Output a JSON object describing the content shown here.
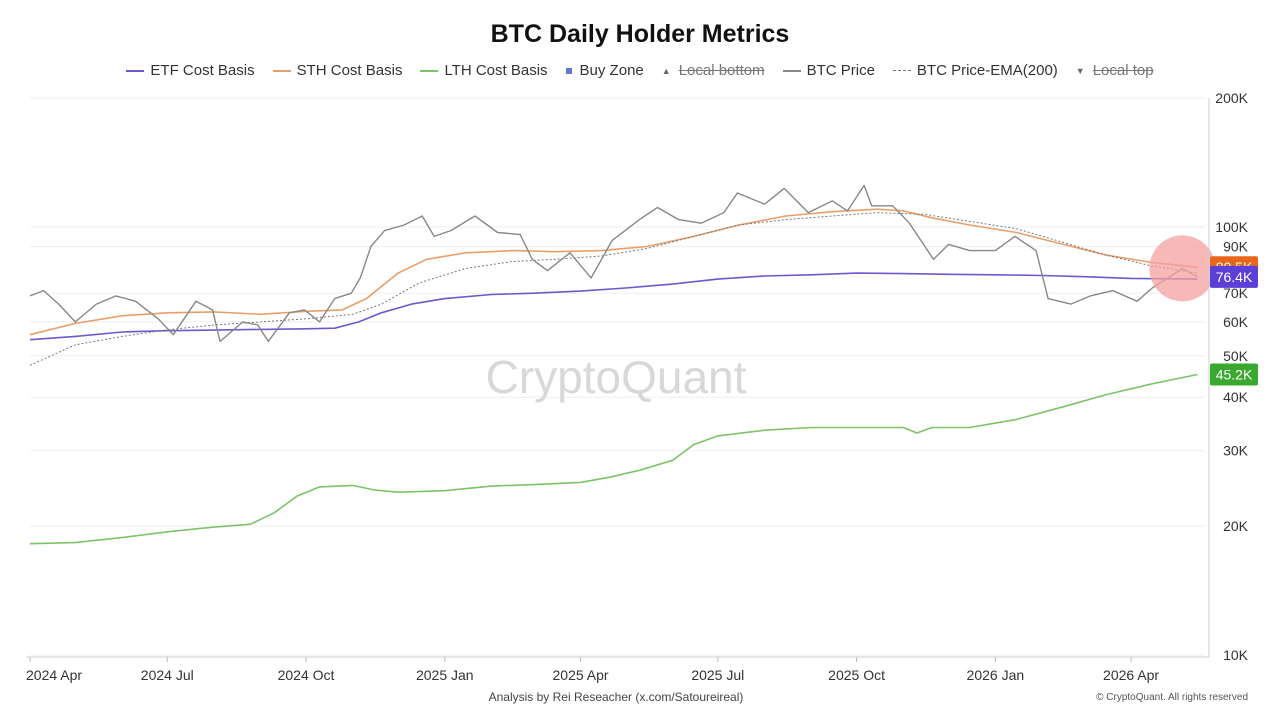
{
  "chart_data": {
    "type": "line",
    "title": "BTC Daily Holder Metrics",
    "y_scale": "log",
    "ylim": [
      10000,
      200000
    ],
    "y_ticks": [
      {
        "value": 200000,
        "label": "200K"
      },
      {
        "value": 100000,
        "label": "100K"
      },
      {
        "value": 90000,
        "label": "90K"
      },
      {
        "value": 70000,
        "label": "70K"
      },
      {
        "value": 60000,
        "label": "60K"
      },
      {
        "value": 50000,
        "label": "50K"
      },
      {
        "value": 40000,
        "label": "40K"
      },
      {
        "value": 30000,
        "label": "30K"
      },
      {
        "value": 20000,
        "label": "20K"
      },
      {
        "value": 10000,
        "label": "10K"
      }
    ],
    "x_range": [
      "2024-04-01",
      "2026-05-20"
    ],
    "x_ticks": [
      {
        "date": "2024-04-01",
        "label": "2024 Apr"
      },
      {
        "date": "2024-07-01",
        "label": "2024 Jul"
      },
      {
        "date": "2024-10-01",
        "label": "2024 Oct"
      },
      {
        "date": "2025-01-01",
        "label": "2025 Jan"
      },
      {
        "date": "2025-04-01",
        "label": "2025 Apr"
      },
      {
        "date": "2025-07-01",
        "label": "2025 Jul"
      },
      {
        "date": "2025-10-01",
        "label": "2025 Oct"
      },
      {
        "date": "2026-01-01",
        "label": "2026 Jan"
      },
      {
        "date": "2026-04-01",
        "label": "2026 Apr"
      }
    ],
    "grid": true,
    "legend": "top-center",
    "legend_items": [
      {
        "name": "ETF Cost Basis",
        "kind": "line",
        "color": "#6a5acd",
        "enabled": true
      },
      {
        "name": "STH Cost Basis",
        "kind": "line",
        "color": "#e8a06a",
        "enabled": true
      },
      {
        "name": "LTH Cost Basis",
        "kind": "line",
        "color": "#7cc36a",
        "enabled": true
      },
      {
        "name": "Buy Zone",
        "kind": "square",
        "color": "#5b7bd5",
        "enabled": true
      },
      {
        "name": "Local bottom",
        "kind": "triangle-up",
        "color": "#666666",
        "enabled": false
      },
      {
        "name": "BTC Price",
        "kind": "line",
        "color": "#888888",
        "enabled": true
      },
      {
        "name": "BTC Price-EMA(200)",
        "kind": "dashed",
        "color": "#777777",
        "enabled": true
      },
      {
        "name": "Local top",
        "kind": "triangle-down",
        "color": "#666666",
        "enabled": false
      }
    ],
    "series": [
      {
        "name": "ETF Cost Basis",
        "color": "#6a5acd",
        "width": 1.6,
        "points": [
          [
            "2024-04-01",
            54500
          ],
          [
            "2024-05-01",
            55500
          ],
          [
            "2024-06-01",
            56800
          ],
          [
            "2024-07-01",
            57200
          ],
          [
            "2024-08-01",
            57400
          ],
          [
            "2024-09-01",
            57600
          ],
          [
            "2024-10-01",
            57800
          ],
          [
            "2024-10-20",
            58000
          ],
          [
            "2024-11-05",
            60000
          ],
          [
            "2024-11-20",
            63000
          ],
          [
            "2024-12-10",
            66000
          ],
          [
            "2025-01-01",
            68000
          ],
          [
            "2025-02-01",
            69500
          ],
          [
            "2025-03-01",
            70000
          ],
          [
            "2025-04-01",
            70800
          ],
          [
            "2025-05-01",
            72000
          ],
          [
            "2025-06-01",
            73500
          ],
          [
            "2025-07-01",
            75500
          ],
          [
            "2025-08-01",
            76800
          ],
          [
            "2025-09-01",
            77300
          ],
          [
            "2025-10-01",
            78000
          ],
          [
            "2025-11-01",
            77800
          ],
          [
            "2025-12-01",
            77500
          ],
          [
            "2026-01-01",
            77300
          ],
          [
            "2026-02-01",
            77000
          ],
          [
            "2026-03-01",
            76500
          ],
          [
            "2026-04-01",
            75800
          ],
          [
            "2026-05-15",
            75500
          ]
        ]
      },
      {
        "name": "STH Cost Basis",
        "color": "#e8a06a",
        "width": 1.6,
        "points": [
          [
            "2024-04-01",
            56000
          ],
          [
            "2024-05-01",
            59500
          ],
          [
            "2024-06-01",
            62000
          ],
          [
            "2024-07-01",
            63000
          ],
          [
            "2024-08-01",
            63300
          ],
          [
            "2024-09-01",
            62500
          ],
          [
            "2024-10-01",
            63500
          ],
          [
            "2024-10-25",
            64000
          ],
          [
            "2024-11-10",
            68000
          ],
          [
            "2024-12-01",
            78000
          ],
          [
            "2024-12-20",
            84000
          ],
          [
            "2025-01-15",
            87000
          ],
          [
            "2025-02-15",
            88000
          ],
          [
            "2025-03-15",
            87500
          ],
          [
            "2025-04-15",
            88000
          ],
          [
            "2025-05-15",
            90000
          ],
          [
            "2025-06-15",
            95000
          ],
          [
            "2025-07-15",
            101000
          ],
          [
            "2025-08-15",
            106000
          ],
          [
            "2025-09-15",
            108500
          ],
          [
            "2025-10-15",
            110000
          ],
          [
            "2025-11-01",
            109000
          ],
          [
            "2025-11-20",
            105000
          ],
          [
            "2025-12-15",
            101000
          ],
          [
            "2026-01-15",
            97000
          ],
          [
            "2026-02-15",
            91000
          ],
          [
            "2026-03-15",
            86000
          ],
          [
            "2026-04-15",
            82500
          ],
          [
            "2026-05-15",
            80500
          ]
        ]
      },
      {
        "name": "LTH Cost Basis",
        "color": "#7cc36a",
        "width": 1.6,
        "points": [
          [
            "2024-04-01",
            18200
          ],
          [
            "2024-05-01",
            18300
          ],
          [
            "2024-06-01",
            18800
          ],
          [
            "2024-07-01",
            19400
          ],
          [
            "2024-08-01",
            19900
          ],
          [
            "2024-08-25",
            20200
          ],
          [
            "2024-09-10",
            21500
          ],
          [
            "2024-09-25",
            23500
          ],
          [
            "2024-10-10",
            24700
          ],
          [
            "2024-11-01",
            24900
          ],
          [
            "2024-11-15",
            24300
          ],
          [
            "2024-12-01",
            24000
          ],
          [
            "2025-01-01",
            24200
          ],
          [
            "2025-02-01",
            24800
          ],
          [
            "2025-03-01",
            25000
          ],
          [
            "2025-04-01",
            25300
          ],
          [
            "2025-04-20",
            26000
          ],
          [
            "2025-05-10",
            27000
          ],
          [
            "2025-06-01",
            28500
          ],
          [
            "2025-06-15",
            31000
          ],
          [
            "2025-07-01",
            32500
          ],
          [
            "2025-08-01",
            33500
          ],
          [
            "2025-09-01",
            34000
          ],
          [
            "2025-10-01",
            34000
          ],
          [
            "2025-11-01",
            34000
          ],
          [
            "2025-11-10",
            33000
          ],
          [
            "2025-11-20",
            34000
          ],
          [
            "2025-12-15",
            34000
          ],
          [
            "2026-01-15",
            35500
          ],
          [
            "2026-02-15",
            38000
          ],
          [
            "2026-03-15",
            40500
          ],
          [
            "2026-04-15",
            43000
          ],
          [
            "2026-05-15",
            45200
          ]
        ]
      },
      {
        "name": "BTC Price-EMA(200)",
        "color": "#777777",
        "width": 1,
        "dashed": true,
        "points": [
          [
            "2024-04-01",
            47500
          ],
          [
            "2024-05-01",
            53000
          ],
          [
            "2024-06-01",
            55500
          ],
          [
            "2024-07-01",
            57500
          ],
          [
            "2024-08-01",
            59000
          ],
          [
            "2024-09-01",
            60000
          ],
          [
            "2024-10-01",
            61000
          ],
          [
            "2024-11-01",
            62500
          ],
          [
            "2024-11-20",
            66000
          ],
          [
            "2024-12-15",
            74000
          ],
          [
            "2025-01-15",
            80000
          ],
          [
            "2025-02-15",
            83000
          ],
          [
            "2025-03-15",
            84000
          ],
          [
            "2025-04-15",
            85500
          ],
          [
            "2025-05-15",
            89000
          ],
          [
            "2025-06-15",
            95000
          ],
          [
            "2025-07-15",
            101000
          ],
          [
            "2025-08-15",
            104000
          ],
          [
            "2025-09-15",
            106000
          ],
          [
            "2025-10-15",
            108000
          ],
          [
            "2025-11-15",
            107000
          ],
          [
            "2025-12-15",
            103000
          ],
          [
            "2026-01-15",
            99000
          ],
          [
            "2026-02-15",
            92000
          ],
          [
            "2026-03-15",
            86000
          ],
          [
            "2026-04-15",
            81000
          ],
          [
            "2026-05-15",
            78000
          ]
        ]
      },
      {
        "name": "BTC Price",
        "color": "#888888",
        "width": 1.4,
        "points": [
          [
            "2024-04-01",
            69000
          ],
          [
            "2024-04-10",
            71000
          ],
          [
            "2024-04-20",
            66000
          ],
          [
            "2024-05-01",
            60000
          ],
          [
            "2024-05-15",
            66000
          ],
          [
            "2024-05-28",
            69000
          ],
          [
            "2024-06-10",
            67000
          ],
          [
            "2024-06-25",
            61000
          ],
          [
            "2024-07-05",
            56000
          ],
          [
            "2024-07-20",
            67000
          ],
          [
            "2024-07-31",
            64000
          ],
          [
            "2024-08-05",
            54000
          ],
          [
            "2024-08-20",
            60000
          ],
          [
            "2024-08-30",
            59000
          ],
          [
            "2024-09-06",
            54000
          ],
          [
            "2024-09-20",
            63000
          ],
          [
            "2024-09-30",
            64000
          ],
          [
            "2024-10-10",
            60000
          ],
          [
            "2024-10-20",
            68000
          ],
          [
            "2024-10-31",
            70000
          ],
          [
            "2024-11-06",
            76000
          ],
          [
            "2024-11-13",
            90000
          ],
          [
            "2024-11-22",
            98000
          ],
          [
            "2024-12-05",
            101000
          ],
          [
            "2024-12-17",
            106000
          ],
          [
            "2024-12-25",
            95000
          ],
          [
            "2025-01-05",
            98000
          ],
          [
            "2025-01-21",
            106000
          ],
          [
            "2025-02-05",
            97000
          ],
          [
            "2025-02-20",
            96000
          ],
          [
            "2025-02-28",
            84000
          ],
          [
            "2025-03-10",
            79000
          ],
          [
            "2025-03-25",
            87000
          ],
          [
            "2025-04-08",
            76000
          ],
          [
            "2025-04-22",
            93000
          ],
          [
            "2025-05-10",
            104000
          ],
          [
            "2025-05-22",
            111000
          ],
          [
            "2025-06-05",
            104000
          ],
          [
            "2025-06-20",
            102000
          ],
          [
            "2025-07-05",
            108000
          ],
          [
            "2025-07-14",
            120000
          ],
          [
            "2025-08-01",
            113000
          ],
          [
            "2025-08-14",
            123000
          ],
          [
            "2025-08-30",
            108000
          ],
          [
            "2025-09-15",
            115000
          ],
          [
            "2025-09-25",
            109000
          ],
          [
            "2025-10-06",
            125000
          ],
          [
            "2025-10-11",
            112000
          ],
          [
            "2025-10-25",
            112000
          ],
          [
            "2025-11-05",
            102000
          ],
          [
            "2025-11-21",
            84000
          ],
          [
            "2025-12-01",
            91000
          ],
          [
            "2025-12-15",
            88000
          ],
          [
            "2026-01-01",
            88000
          ],
          [
            "2026-01-14",
            95000
          ],
          [
            "2026-01-28",
            88000
          ],
          [
            "2026-02-05",
            68000
          ],
          [
            "2026-02-20",
            66000
          ],
          [
            "2026-03-05",
            69000
          ],
          [
            "2026-03-20",
            71000
          ],
          [
            "2026-04-05",
            67000
          ],
          [
            "2026-04-15",
            72000
          ],
          [
            "2026-04-28",
            77000
          ],
          [
            "2026-05-05",
            80000
          ],
          [
            "2026-05-15",
            76400
          ]
        ]
      }
    ],
    "buy_zone": {
      "date": "2026-05-05",
      "value": 80000,
      "color": "#f4a0a0"
    },
    "value_badges": [
      {
        "label": "80.5K",
        "value": 80500,
        "color": "#e8661a"
      },
      {
        "label": "76.4K",
        "value": 76400,
        "color": "#5b3fd6"
      },
      {
        "label": "45.2K",
        "value": 45200,
        "color": "#3aa82e"
      }
    ],
    "watermark": "CryptoQuant"
  },
  "footer": {
    "credit": "Analysis by Rei Reseacher (x.com/Satoureireal)",
    "copyright": "© CryptoQuant. All rights reserved"
  }
}
